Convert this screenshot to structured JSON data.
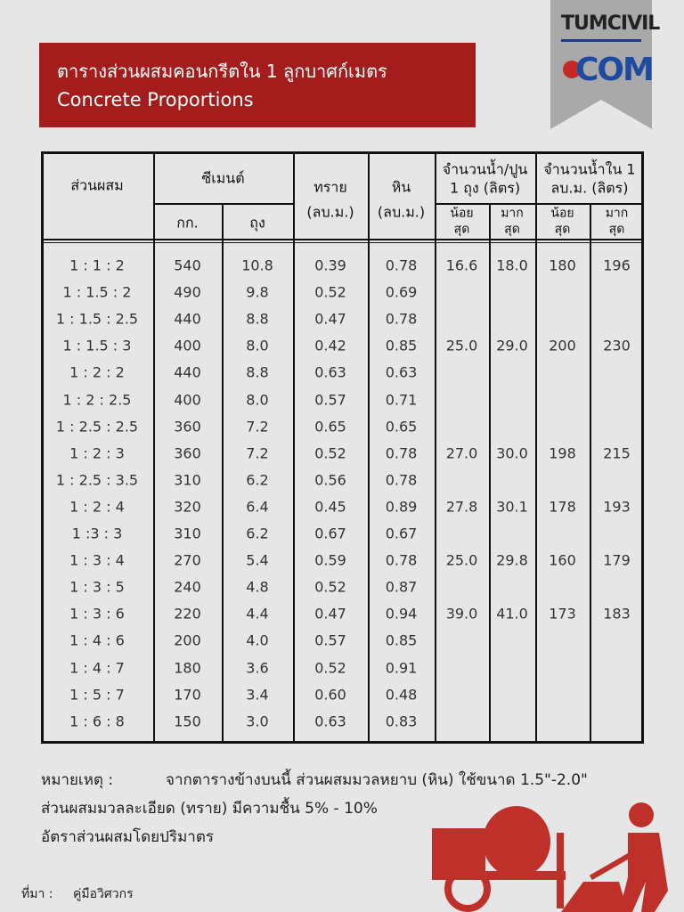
{
  "title": {
    "thai": "ตารางส่วนผสมคอนกรีตใน 1 ลูกบาศก์เมตร",
    "english": "Concrete Proportions"
  },
  "logo": {
    "top": "TUMCIVIL",
    "bottom": "COM"
  },
  "table": {
    "header": {
      "mix": "ส่วนผสม",
      "cement": "ซีเมนต์",
      "cement_kg": "กก.",
      "cement_bag": "ถุง",
      "sand": [
        "ทราย",
        "(ลบ.ม.)"
      ],
      "stone": [
        "หิน",
        "(ลบ.ม.)"
      ],
      "water_per_bag": [
        "จำนวนน้ำ/ปูน",
        "1 ถุง (ลิตร)"
      ],
      "water_per_m3": [
        "จำนวนน้ำใน 1",
        "ลบ.ม. (ลิตร)"
      ],
      "min": [
        "น้อย",
        "สุด"
      ],
      "max": [
        "มาก",
        "สุด"
      ]
    },
    "rows": [
      [
        "1 : 1 : 2",
        "540",
        "10.8",
        "0.39",
        "0.78",
        "16.6",
        "18.0",
        "180",
        "196"
      ],
      [
        "1 : 1.5 : 2",
        "490",
        "9.8",
        "0.52",
        "0.69"
      ],
      [
        "1 : 1.5 : 2.5",
        "440",
        "8.8",
        "0.47",
        "0.78"
      ],
      [
        "1 : 1.5 : 3",
        "400",
        "8.0",
        "0.42",
        "0.85",
        "25.0",
        "29.0",
        "200",
        "230"
      ],
      [
        "1 : 2 : 2",
        "440",
        "8.8",
        "0.63",
        "0.63"
      ],
      [
        "1 : 2 : 2.5",
        "400",
        "8.0",
        "0.57",
        "0.71"
      ],
      [
        "1 : 2.5 : 2.5",
        "360",
        "7.2",
        "0.65",
        "0.65"
      ],
      [
        "1 : 2 : 3",
        "360",
        "7.2",
        "0.52",
        "0.78",
        "27.0",
        "30.0",
        "198",
        "215"
      ],
      [
        "1 : 2.5 : 3.5",
        "310",
        "6.2",
        "0.56",
        "0.78"
      ],
      [
        "1 : 2 : 4",
        "320",
        "6.4",
        "0.45",
        "0.89",
        "27.8",
        "30.1",
        "178",
        "193"
      ],
      [
        "1 :3 : 3",
        "310",
        "6.2",
        "0.67",
        "0.67"
      ],
      [
        "1 : 3 : 4",
        "270",
        "5.4",
        "0.59",
        "0.78",
        "25.0",
        "29.8",
        "160",
        "179"
      ],
      [
        "1 : 3 : 5",
        "240",
        "4.8",
        "0.52",
        "0.87"
      ],
      [
        "1 : 3 : 6",
        "220",
        "4.4",
        "0.47",
        "0.94",
        "39.0",
        "41.0",
        "173",
        "183"
      ],
      [
        "1 : 4 : 6",
        "200",
        "4.0",
        "0.57",
        "0.85"
      ],
      [
        "1 : 4 : 7",
        "180",
        "3.6",
        "0.52",
        "0.91"
      ],
      [
        "1 : 5 : 7",
        "170",
        "3.4",
        "0.60",
        "0.48"
      ],
      [
        "1 : 6 : 8",
        "150",
        "3.0",
        "0.63",
        "0.83"
      ]
    ]
  },
  "notes": {
    "label": "หมายเหตุ :",
    "lines": [
      "จากตารางข้างบนนี้ ส่วนผสมมวลหยาบ (หิน) ใช้ขนาด 1.5\"-2.0\"",
      "ส่วนผสมมวลละเอียด (ทราย) มีความชื้น 5% - 10%",
      "อัตราส่วนผสมโดยปริมาตร"
    ]
  },
  "source": {
    "label": "ที่มา :",
    "text": "คู่มือวิศวกร"
  }
}
